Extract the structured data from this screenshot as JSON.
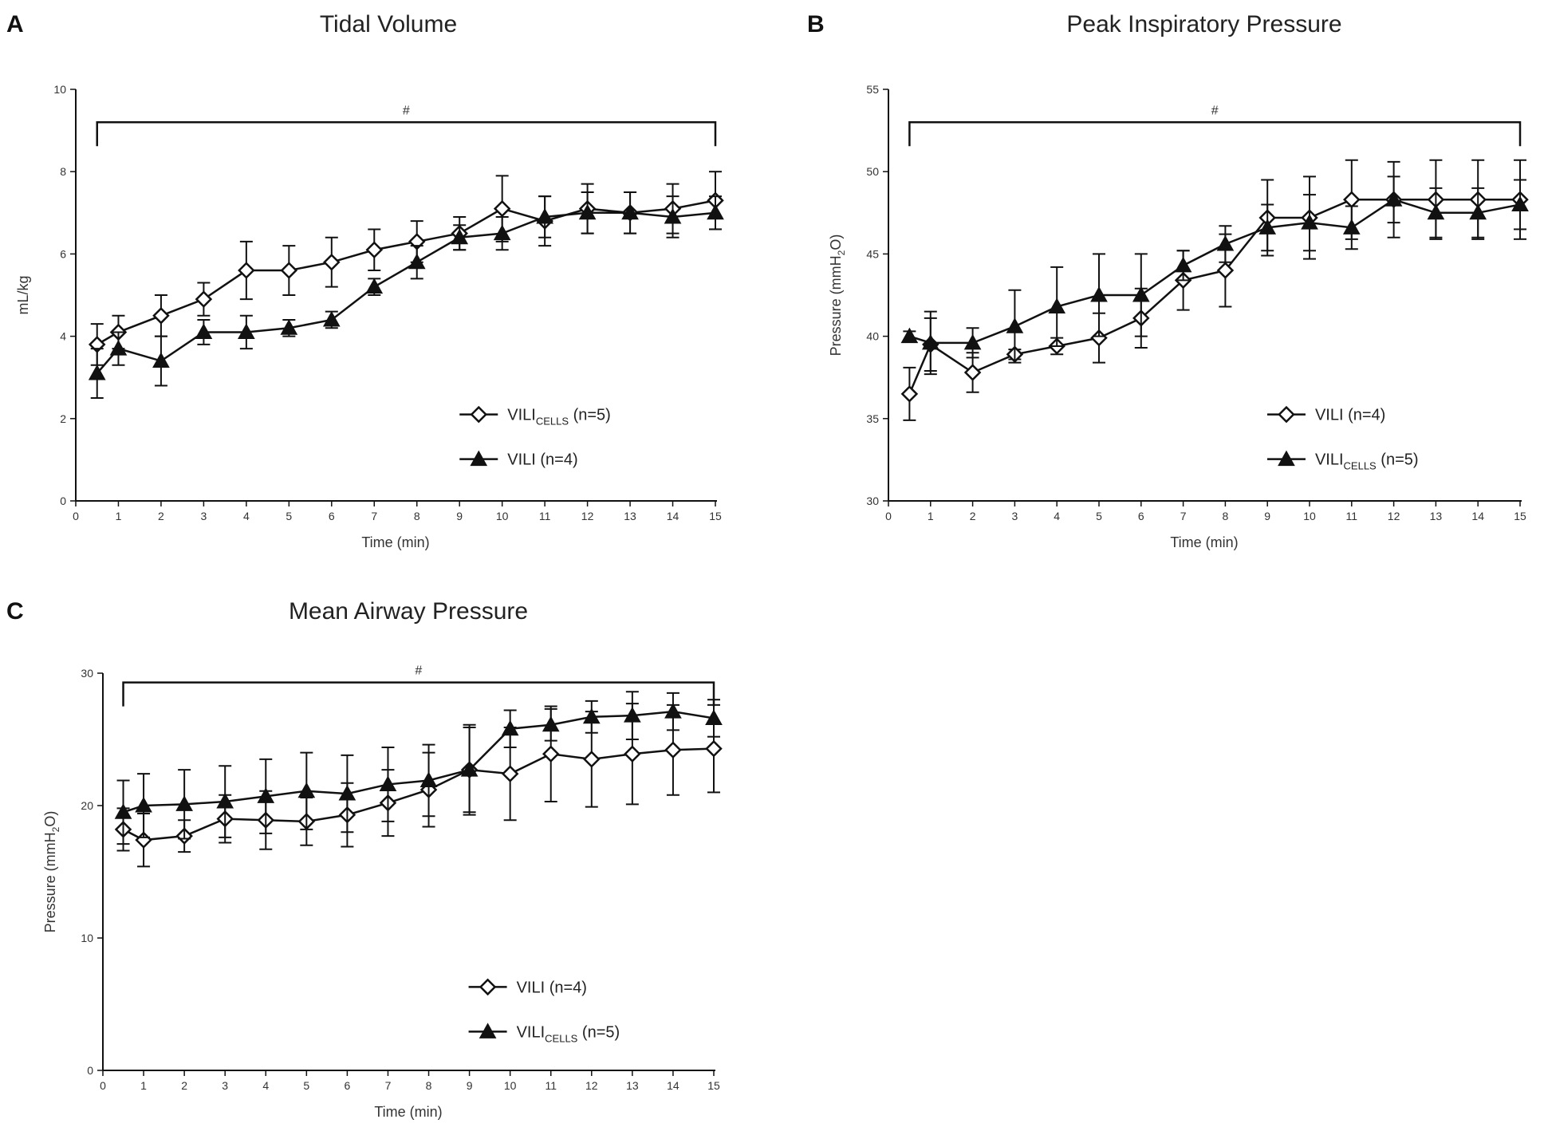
{
  "colors": {
    "ink": "#111111",
    "open_marker_fill": "#ffffff",
    "filled_marker": "#111111"
  },
  "chart_data": [
    {
      "panel": "A",
      "type": "line",
      "title": "Tidal Volume",
      "xlabel": "Time (min)",
      "ylabel": "mL/kg",
      "xlim": [
        0,
        15
      ],
      "ylim": [
        0,
        10
      ],
      "xticks": [
        0,
        1,
        2,
        3,
        4,
        5,
        6,
        7,
        8,
        9,
        10,
        11,
        12,
        13,
        14,
        15
      ],
      "yticks": [
        0,
        2,
        4,
        6,
        8,
        10
      ],
      "x": [
        0.5,
        1,
        2,
        3,
        4,
        5,
        6,
        7,
        8,
        9,
        10,
        11,
        12,
        13,
        14,
        15
      ],
      "significance": {
        "label": "#",
        "x_start": 0.5,
        "x_end": 15,
        "y": 9.2
      },
      "legend_position": "right",
      "series": [
        {
          "name": "VILI",
          "subscript": "CELLS",
          "suffix": " (n=5)",
          "marker": "open-diamond",
          "values": [
            3.8,
            4.1,
            4.5,
            4.9,
            5.6,
            5.6,
            5.8,
            6.1,
            6.3,
            6.5,
            7.1,
            6.8,
            7.1,
            7.0,
            7.1,
            7.3
          ],
          "errors": [
            0.5,
            0.4,
            0.5,
            0.4,
            0.7,
            0.6,
            0.6,
            0.5,
            0.5,
            0.4,
            0.8,
            0.6,
            0.6,
            0.5,
            0.6,
            0.7
          ]
        },
        {
          "name": "VILI",
          "subscript": "",
          "suffix": " (n=4)",
          "marker": "filled-triangle",
          "values": [
            3.1,
            3.7,
            3.4,
            4.1,
            4.1,
            4.2,
            4.4,
            5.2,
            5.8,
            6.4,
            6.5,
            6.9,
            7.0,
            7.0,
            6.9,
            7.0
          ],
          "errors": [
            0.6,
            0.4,
            0.6,
            0.3,
            0.4,
            0.2,
            0.2,
            0.2,
            0.4,
            0.3,
            0.4,
            0.5,
            0.5,
            0.5,
            0.5,
            0.4
          ]
        }
      ]
    },
    {
      "panel": "B",
      "type": "line",
      "title": "Peak Inspiratory Pressure",
      "xlabel": "Time (min)",
      "ylabel_main": "Pressure (mmH",
      "ylabel_sub": "2",
      "ylabel_end": "O)",
      "xlim": [
        0,
        15
      ],
      "ylim": [
        30,
        55
      ],
      "xticks": [
        0,
        1,
        2,
        3,
        4,
        5,
        6,
        7,
        8,
        9,
        10,
        11,
        12,
        13,
        14,
        15
      ],
      "yticks": [
        30,
        35,
        40,
        45,
        50,
        55
      ],
      "x": [
        0.5,
        1,
        2,
        3,
        4,
        5,
        6,
        7,
        8,
        9,
        10,
        11,
        12,
        13,
        14,
        15
      ],
      "significance": {
        "label": "#",
        "x_start": 0.5,
        "x_end": 15,
        "y": 53
      },
      "legend_position": "right",
      "series": [
        {
          "name": "VILI",
          "subscript": "",
          "suffix": " (n=4)",
          "marker": "open-diamond",
          "values": [
            36.5,
            39.5,
            37.8,
            38.9,
            39.4,
            39.9,
            41.1,
            43.4,
            44.0,
            47.2,
            47.2,
            48.3,
            48.3,
            48.3,
            48.3,
            48.3
          ],
          "errors": [
            1.6,
            1.6,
            1.2,
            0.3,
            0.5,
            1.5,
            1.8,
            1.8,
            2.2,
            2.3,
            2.5,
            2.4,
            2.3,
            2.4,
            2.4,
            2.4
          ]
        },
        {
          "name": "VILI",
          "subscript": "CELLS",
          "suffix": " (n=5)",
          "marker": "filled-triangle",
          "values": [
            40.0,
            39.6,
            39.6,
            40.6,
            41.8,
            42.5,
            42.5,
            44.3,
            45.6,
            46.6,
            46.9,
            46.6,
            48.3,
            47.5,
            47.5,
            48.0
          ],
          "errors": [
            0.3,
            1.9,
            0.9,
            2.2,
            2.4,
            2.5,
            2.5,
            0.9,
            1.1,
            1.4,
            1.7,
            1.3,
            1.4,
            1.5,
            1.5,
            1.5
          ]
        }
      ]
    },
    {
      "panel": "C",
      "type": "line",
      "title": "Mean Airway Pressure",
      "xlabel": "Time (min)",
      "ylabel_main": "Pressure (mmH",
      "ylabel_sub": "2",
      "ylabel_end": "O)",
      "xlim": [
        0,
        15
      ],
      "ylim": [
        0,
        30
      ],
      "xticks": [
        0,
        1,
        2,
        3,
        4,
        5,
        6,
        7,
        8,
        9,
        10,
        11,
        12,
        13,
        14,
        15
      ],
      "yticks": [
        0,
        10,
        20,
        30
      ],
      "x": [
        0.5,
        1,
        2,
        3,
        4,
        5,
        6,
        7,
        8,
        9,
        10,
        11,
        12,
        13,
        14,
        15
      ],
      "significance": {
        "label": "#",
        "x_start": 0.5,
        "x_end": 15,
        "y": 29.3
      },
      "legend_position": "right",
      "series": [
        {
          "name": "VILI",
          "subscript": "",
          "suffix": " (n=4)",
          "marker": "open-diamond",
          "values": [
            18.2,
            17.4,
            17.7,
            19.0,
            18.9,
            18.8,
            19.3,
            20.2,
            21.2,
            22.7,
            22.4,
            23.9,
            23.5,
            23.9,
            24.2,
            24.3
          ],
          "errors": [
            1.6,
            2.0,
            1.2,
            1.8,
            2.2,
            1.8,
            2.4,
            2.5,
            2.8,
            3.4,
            3.5,
            3.6,
            3.6,
            3.8,
            3.4,
            3.3
          ]
        },
        {
          "name": "VILI",
          "subscript": "CELLS",
          "suffix": " (n=5)",
          "marker": "filled-triangle",
          "values": [
            19.5,
            20.0,
            20.1,
            20.3,
            20.7,
            21.1,
            20.9,
            21.6,
            21.9,
            22.7,
            25.8,
            26.1,
            26.7,
            26.8,
            27.1,
            26.6
          ],
          "errors": [
            2.4,
            2.4,
            2.6,
            2.7,
            2.8,
            2.9,
            2.9,
            2.8,
            2.7,
            3.2,
            1.4,
            1.2,
            1.2,
            1.8,
            1.4,
            1.4
          ]
        }
      ]
    }
  ]
}
